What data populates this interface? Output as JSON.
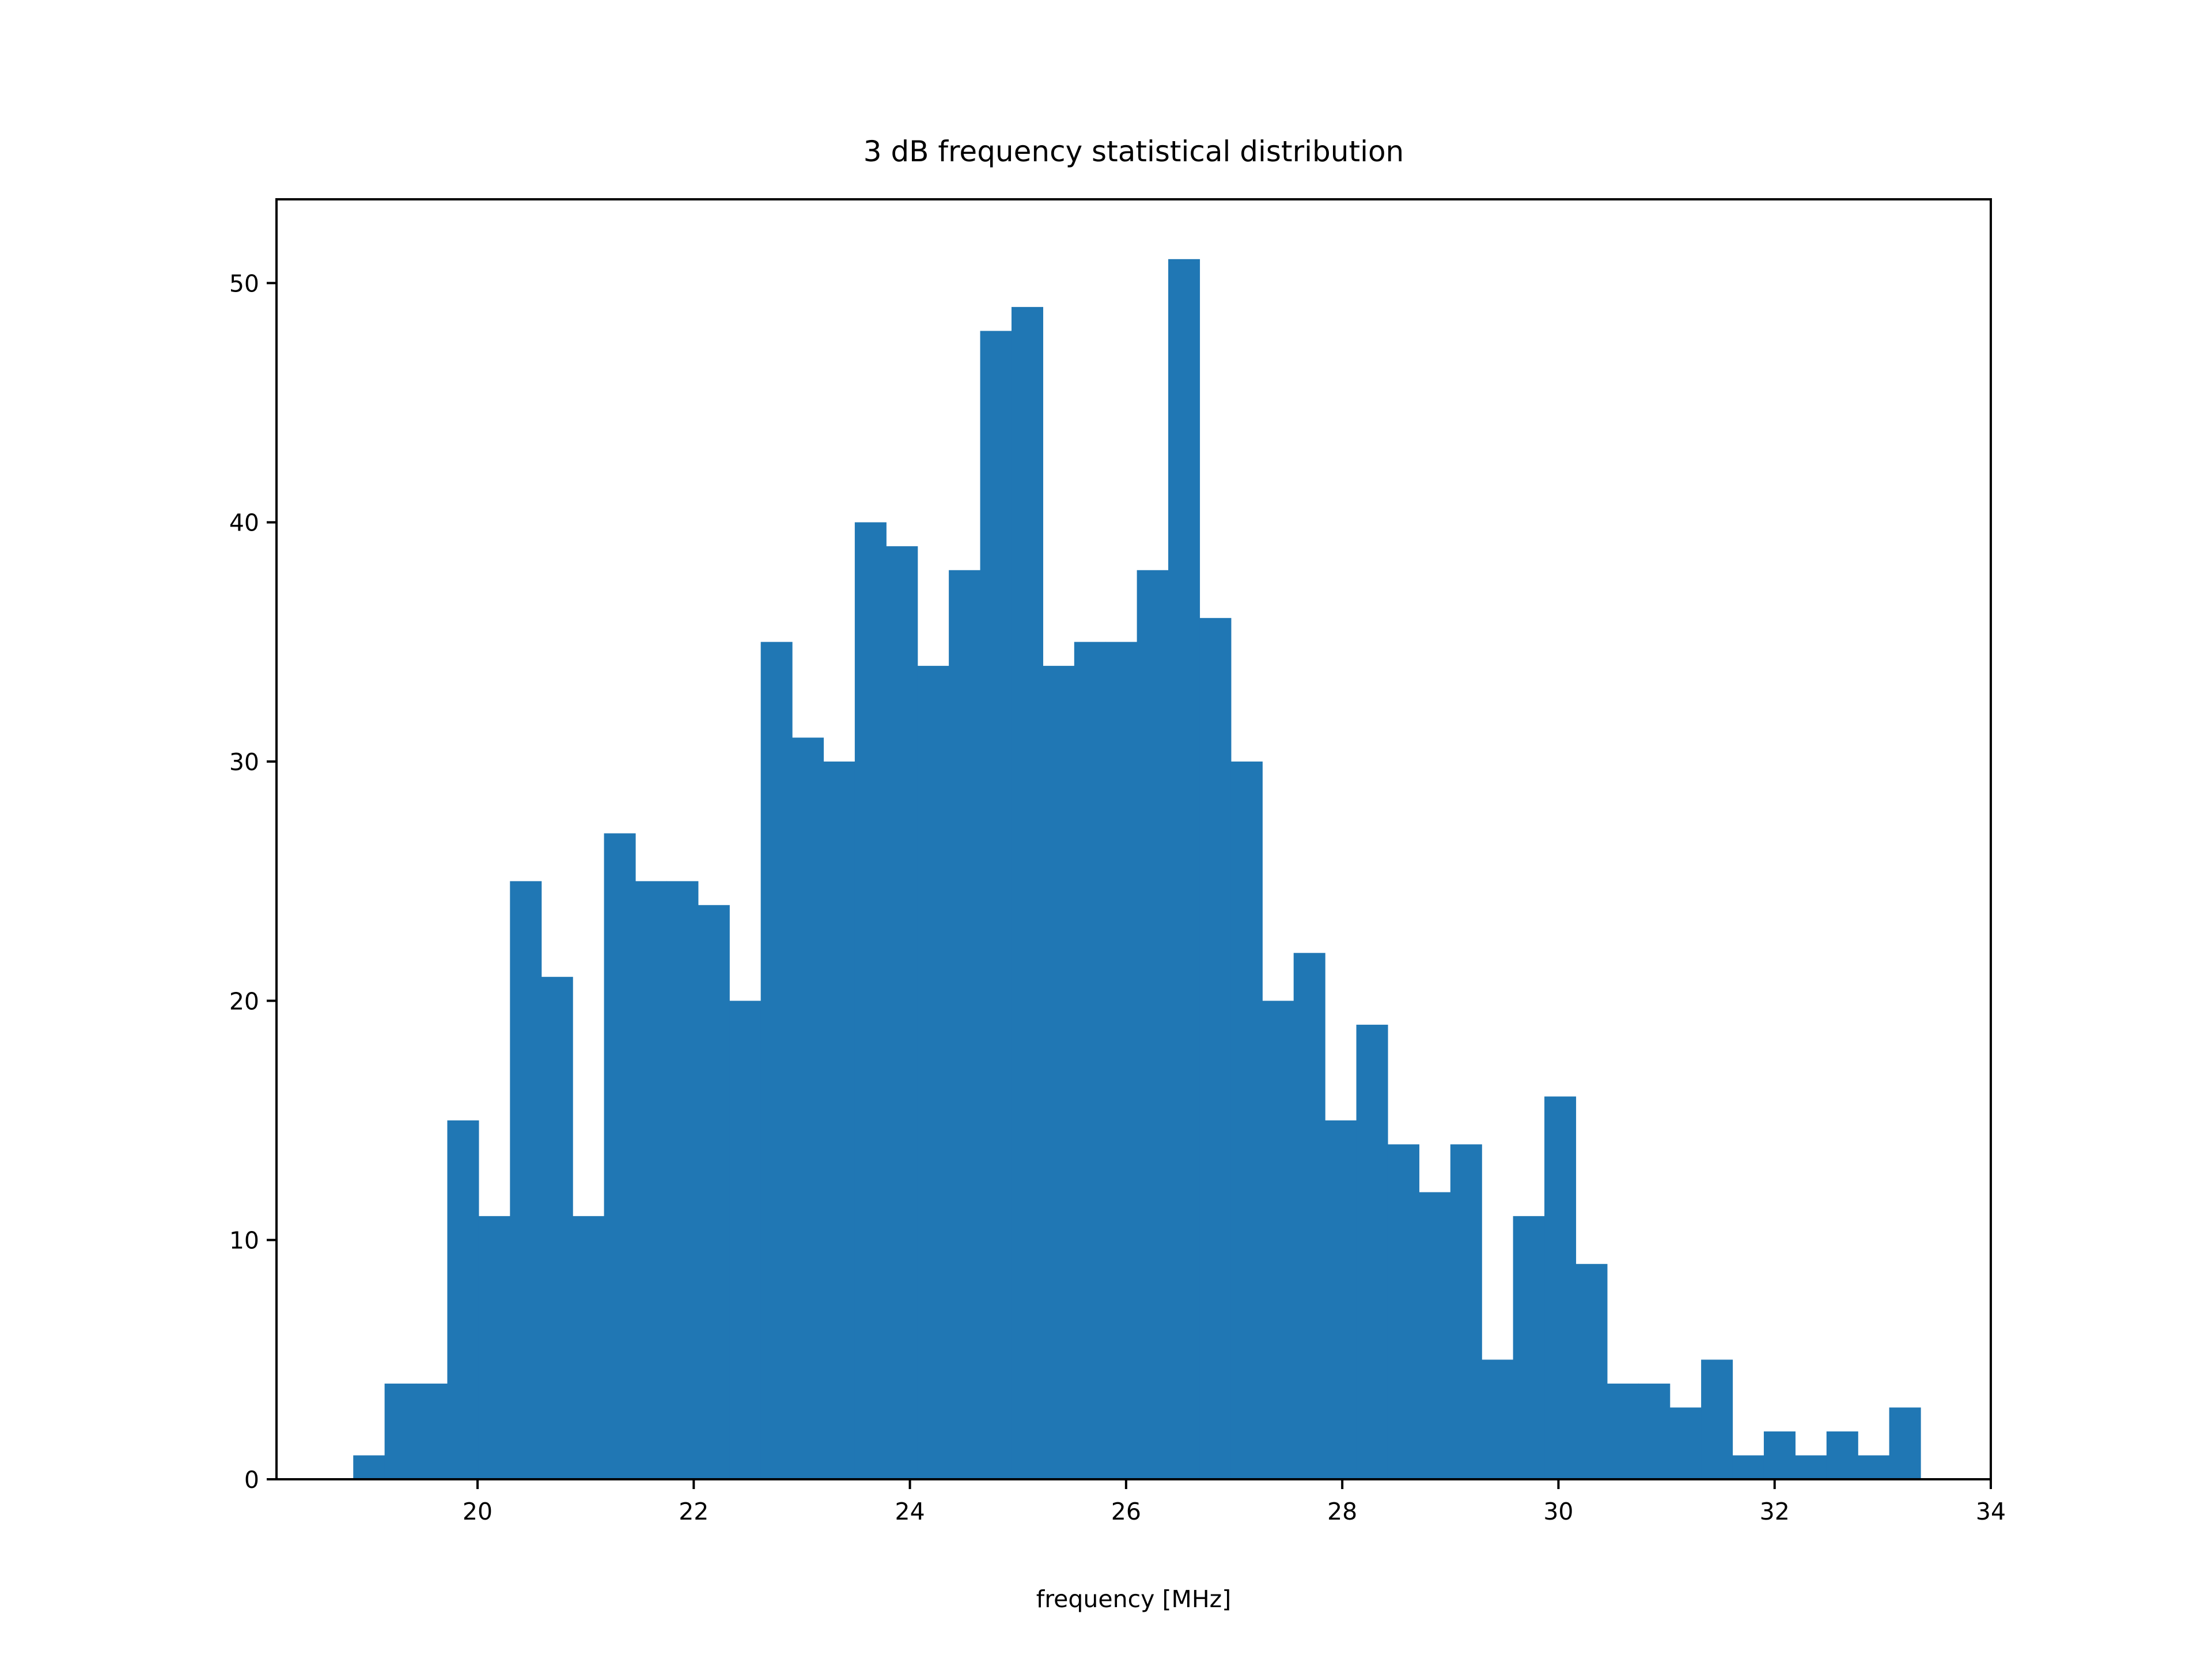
{
  "chart_data": {
    "type": "bar",
    "title": "3 dB frequency statistical distribution",
    "xlabel": "frequency [MHz]",
    "ylabel": "",
    "bin_width": 0.29,
    "bin_start": 18.85,
    "values": [
      1,
      4,
      4,
      15,
      11,
      25,
      21,
      11,
      27,
      25,
      25,
      24,
      20,
      35,
      31,
      30,
      40,
      39,
      34,
      38,
      48,
      49,
      34,
      35,
      35,
      38,
      51,
      36,
      30,
      20,
      22,
      15,
      19,
      14,
      12,
      14,
      5,
      11,
      16,
      9,
      4,
      4,
      3,
      5,
      1,
      2,
      1,
      2,
      1,
      3
    ],
    "xlim": [
      18.14,
      34.0
    ],
    "ylim": [
      0,
      53.5
    ],
    "xticks": [
      20,
      22,
      24,
      26,
      28,
      30,
      32,
      34
    ],
    "xtick_labels": [
      "20",
      "22",
      "24",
      "26",
      "28",
      "30",
      "32",
      "34"
    ],
    "yticks": [
      0,
      10,
      20,
      30,
      40,
      50
    ],
    "ytick_labels": [
      "0",
      "10",
      "20",
      "30",
      "40",
      "50"
    ],
    "bar_color": "#2077b4",
    "grid": false,
    "legend": "none"
  }
}
